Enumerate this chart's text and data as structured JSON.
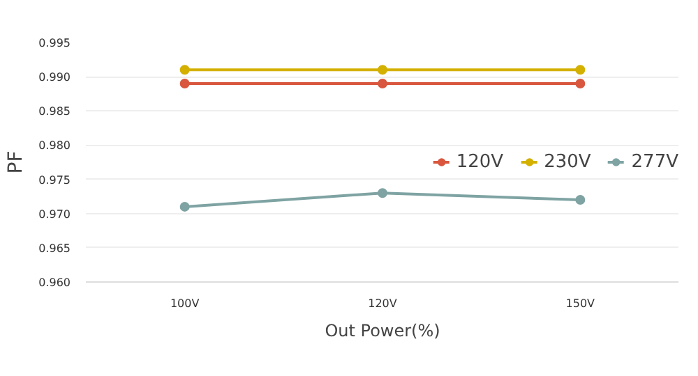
{
  "chart_data": {
    "type": "line",
    "xlabel": "Out Power(%)",
    "ylabel": "PF",
    "categories": [
      "100V",
      "120V",
      "150V"
    ],
    "series": [
      {
        "name": "120V",
        "color": "#d9573e",
        "values": [
          0.989,
          0.989,
          0.989
        ]
      },
      {
        "name": "230V",
        "color": "#d4b000",
        "values": [
          0.991,
          0.991,
          0.991
        ]
      },
      {
        "name": "277V",
        "color": "#7fa3a3",
        "values": [
          0.971,
          0.973,
          0.972
        ]
      }
    ],
    "ylim": [
      0.96,
      0.995
    ],
    "yticks": [
      {
        "value": 0.96,
        "label": "0.960"
      },
      {
        "value": 0.965,
        "label": "0.965"
      },
      {
        "value": 0.97,
        "label": "0.970"
      },
      {
        "value": 0.975,
        "label": "0.975"
      },
      {
        "value": 0.98,
        "label": "0.980"
      },
      {
        "value": 0.985,
        "label": "0.985"
      },
      {
        "value": 0.99,
        "label": "0.990"
      },
      {
        "value": 0.995,
        "label": "0.995"
      }
    ],
    "grid": "y",
    "legend": "right",
    "marker": "circle",
    "line_style": "solid"
  }
}
